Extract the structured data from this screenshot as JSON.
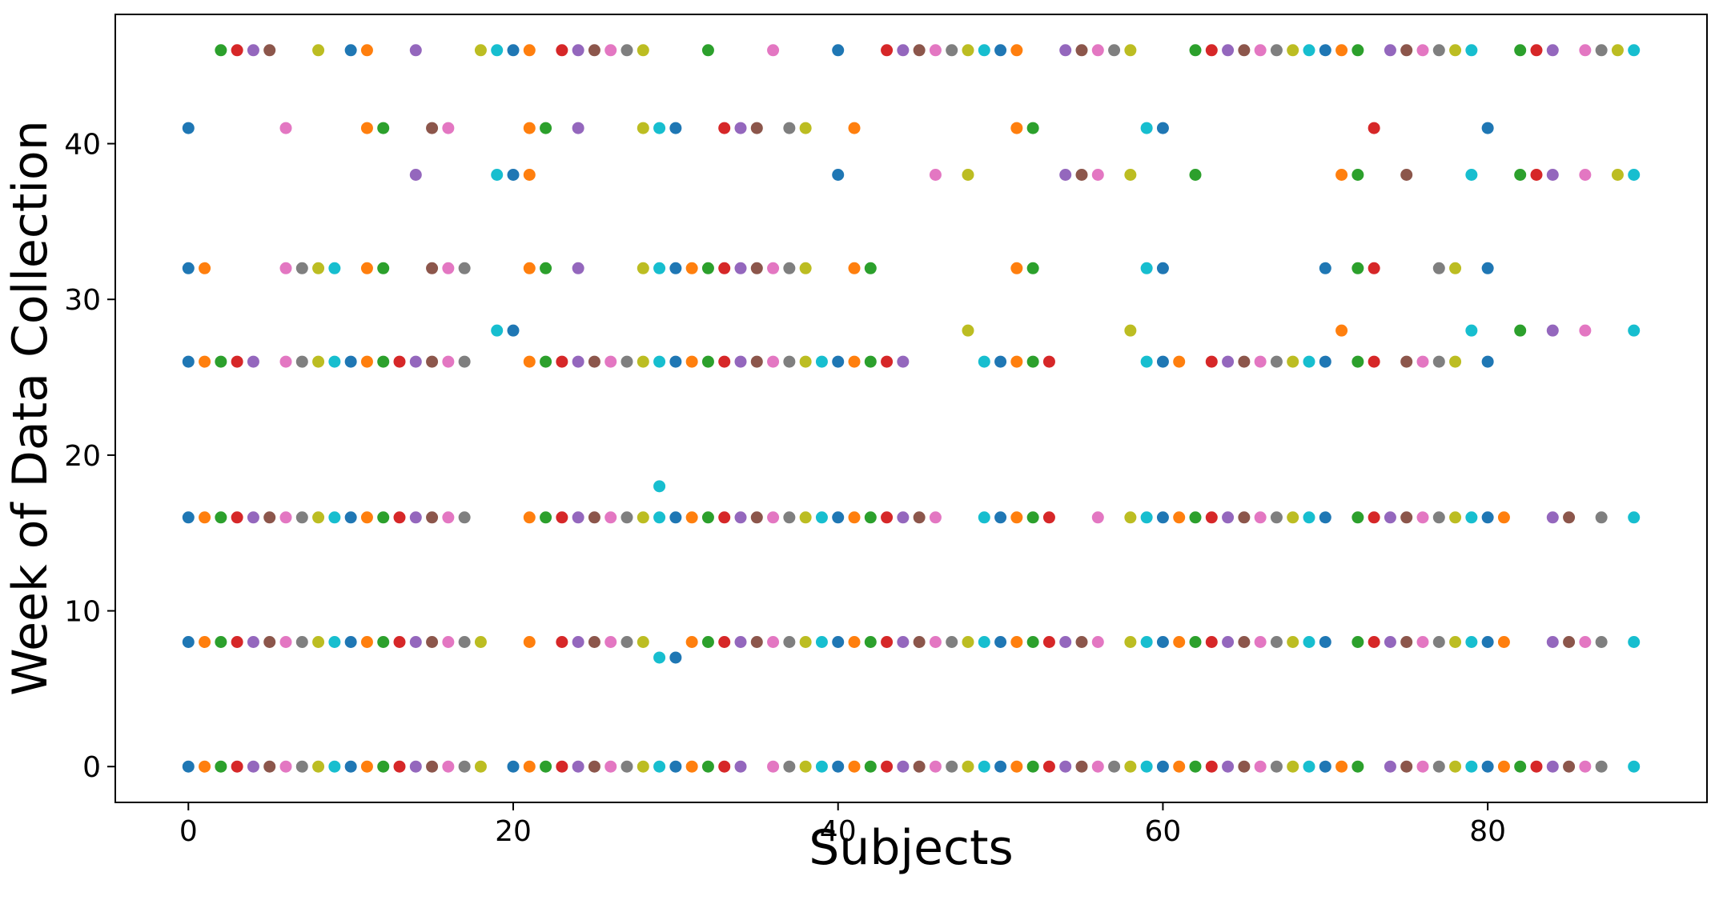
{
  "chart_data": {
    "type": "scatter",
    "title": "",
    "xlabel": "Subjects",
    "ylabel": "Week of Data Collection",
    "xlim": [
      -4.5,
      93.5
    ],
    "ylim": [
      -2.3,
      48.3
    ],
    "xticks": [
      0,
      20,
      40,
      60,
      80
    ],
    "yticks": [
      0,
      10,
      20,
      30,
      40
    ],
    "grid": false,
    "legend": "none",
    "palette": [
      "#1f77b4",
      "#ff7f0e",
      "#2ca02c",
      "#d62728",
      "#9467bd",
      "#8c564b",
      "#e377c2",
      "#7f7f7f",
      "#bcbd22",
      "#17becf"
    ],
    "series": [
      {
        "subject": 0,
        "weeks": [
          0,
          8,
          16,
          26,
          32,
          41
        ]
      },
      {
        "subject": 1,
        "weeks": [
          0,
          8,
          16,
          26,
          32
        ]
      },
      {
        "subject": 2,
        "weeks": [
          0,
          8,
          16,
          26,
          46
        ]
      },
      {
        "subject": 3,
        "weeks": [
          0,
          8,
          16,
          26,
          46
        ]
      },
      {
        "subject": 4,
        "weeks": [
          0,
          8,
          16,
          26,
          46
        ]
      },
      {
        "subject": 5,
        "weeks": [
          0,
          8,
          16,
          46
        ]
      },
      {
        "subject": 6,
        "weeks": [
          0,
          8,
          16,
          26,
          32,
          41
        ]
      },
      {
        "subject": 7,
        "weeks": [
          0,
          8,
          16,
          26,
          32
        ]
      },
      {
        "subject": 8,
        "weeks": [
          0,
          8,
          16,
          26,
          32,
          46
        ]
      },
      {
        "subject": 9,
        "weeks": [
          0,
          8,
          16,
          26,
          32
        ]
      },
      {
        "subject": 10,
        "weeks": [
          0,
          8,
          16,
          26,
          46
        ]
      },
      {
        "subject": 11,
        "weeks": [
          0,
          8,
          16,
          26,
          32,
          41,
          46
        ]
      },
      {
        "subject": 12,
        "weeks": [
          0,
          8,
          16,
          26,
          32,
          41
        ]
      },
      {
        "subject": 13,
        "weeks": [
          0,
          8,
          16,
          26
        ]
      },
      {
        "subject": 14,
        "weeks": [
          0,
          8,
          16,
          26,
          38,
          46
        ]
      },
      {
        "subject": 15,
        "weeks": [
          0,
          8,
          16,
          26,
          32,
          41
        ]
      },
      {
        "subject": 16,
        "weeks": [
          0,
          8,
          16,
          26,
          32,
          41
        ]
      },
      {
        "subject": 17,
        "weeks": [
          0,
          8,
          16,
          26,
          32
        ]
      },
      {
        "subject": 18,
        "weeks": [
          0,
          8,
          46
        ]
      },
      {
        "subject": 19,
        "weeks": [
          28,
          38,
          46
        ]
      },
      {
        "subject": 20,
        "weeks": [
          0,
          28,
          38,
          46
        ]
      },
      {
        "subject": 21,
        "weeks": [
          0,
          8,
          16,
          26,
          32,
          38,
          41,
          46
        ]
      },
      {
        "subject": 22,
        "weeks": [
          0,
          16,
          26,
          32,
          41
        ]
      },
      {
        "subject": 23,
        "weeks": [
          0,
          8,
          16,
          26,
          46
        ]
      },
      {
        "subject": 24,
        "weeks": [
          0,
          8,
          16,
          26,
          32,
          41,
          46
        ]
      },
      {
        "subject": 25,
        "weeks": [
          0,
          8,
          16,
          26,
          46
        ]
      },
      {
        "subject": 26,
        "weeks": [
          0,
          8,
          16,
          26,
          46
        ]
      },
      {
        "subject": 27,
        "weeks": [
          0,
          8,
          16,
          26,
          46
        ]
      },
      {
        "subject": 28,
        "weeks": [
          0,
          8,
          16,
          26,
          32,
          41,
          46
        ]
      },
      {
        "subject": 29,
        "weeks": [
          0,
          7,
          16,
          18,
          26,
          32,
          41
        ]
      },
      {
        "subject": 30,
        "weeks": [
          0,
          7,
          16,
          26,
          32,
          41
        ]
      },
      {
        "subject": 31,
        "weeks": [
          0,
          8,
          16,
          26,
          32
        ]
      },
      {
        "subject": 32,
        "weeks": [
          0,
          8,
          16,
          26,
          32,
          46
        ]
      },
      {
        "subject": 33,
        "weeks": [
          0,
          8,
          16,
          26,
          32,
          41
        ]
      },
      {
        "subject": 34,
        "weeks": [
          0,
          8,
          16,
          26,
          32,
          41
        ]
      },
      {
        "subject": 35,
        "weeks": [
          8,
          16,
          26,
          32,
          41
        ]
      },
      {
        "subject": 36,
        "weeks": [
          0,
          8,
          16,
          26,
          32,
          46
        ]
      },
      {
        "subject": 37,
        "weeks": [
          0,
          8,
          16,
          26,
          32,
          41
        ]
      },
      {
        "subject": 38,
        "weeks": [
          0,
          8,
          16,
          26,
          32,
          41
        ]
      },
      {
        "subject": 39,
        "weeks": [
          0,
          8,
          16,
          26
        ]
      },
      {
        "subject": 40,
        "weeks": [
          0,
          8,
          16,
          26,
          38,
          46
        ]
      },
      {
        "subject": 41,
        "weeks": [
          0,
          8,
          16,
          26,
          32,
          41
        ]
      },
      {
        "subject": 42,
        "weeks": [
          0,
          8,
          16,
          26,
          32
        ]
      },
      {
        "subject": 43,
        "weeks": [
          0,
          8,
          16,
          26,
          46
        ]
      },
      {
        "subject": 44,
        "weeks": [
          0,
          8,
          16,
          26,
          46
        ]
      },
      {
        "subject": 45,
        "weeks": [
          0,
          8,
          16,
          46
        ]
      },
      {
        "subject": 46,
        "weeks": [
          0,
          8,
          16,
          38,
          46
        ]
      },
      {
        "subject": 47,
        "weeks": [
          0,
          8,
          46
        ]
      },
      {
        "subject": 48,
        "weeks": [
          0,
          8,
          28,
          38,
          46
        ]
      },
      {
        "subject": 49,
        "weeks": [
          0,
          8,
          16,
          26,
          46
        ]
      },
      {
        "subject": 50,
        "weeks": [
          0,
          8,
          16,
          26,
          46
        ]
      },
      {
        "subject": 51,
        "weeks": [
          0,
          8,
          16,
          26,
          32,
          41,
          46
        ]
      },
      {
        "subject": 52,
        "weeks": [
          0,
          8,
          16,
          26,
          32,
          41
        ]
      },
      {
        "subject": 53,
        "weeks": [
          0,
          8,
          16,
          26
        ]
      },
      {
        "subject": 54,
        "weeks": [
          0,
          8,
          38,
          46
        ]
      },
      {
        "subject": 55,
        "weeks": [
          0,
          8,
          38,
          46
        ]
      },
      {
        "subject": 56,
        "weeks": [
          0,
          8,
          16,
          38,
          46
        ]
      },
      {
        "subject": 57,
        "weeks": [
          0,
          46
        ]
      },
      {
        "subject": 58,
        "weeks": [
          0,
          8,
          16,
          28,
          38,
          46
        ]
      },
      {
        "subject": 59,
        "weeks": [
          0,
          8,
          16,
          26,
          32,
          41
        ]
      },
      {
        "subject": 60,
        "weeks": [
          0,
          8,
          16,
          26,
          32,
          41
        ]
      },
      {
        "subject": 61,
        "weeks": [
          0,
          8,
          16,
          26
        ]
      },
      {
        "subject": 62,
        "weeks": [
          0,
          8,
          16,
          38,
          46
        ]
      },
      {
        "subject": 63,
        "weeks": [
          0,
          8,
          16,
          26,
          46
        ]
      },
      {
        "subject": 64,
        "weeks": [
          0,
          8,
          16,
          26,
          46
        ]
      },
      {
        "subject": 65,
        "weeks": [
          0,
          8,
          16,
          26,
          46
        ]
      },
      {
        "subject": 66,
        "weeks": [
          0,
          8,
          16,
          26,
          46
        ]
      },
      {
        "subject": 67,
        "weeks": [
          0,
          8,
          16,
          26,
          46
        ]
      },
      {
        "subject": 68,
        "weeks": [
          0,
          8,
          16,
          26,
          46
        ]
      },
      {
        "subject": 69,
        "weeks": [
          0,
          8,
          16,
          26,
          46
        ]
      },
      {
        "subject": 70,
        "weeks": [
          0,
          8,
          16,
          26,
          32,
          46
        ]
      },
      {
        "subject": 71,
        "weeks": [
          0,
          28,
          38,
          46
        ]
      },
      {
        "subject": 72,
        "weeks": [
          0,
          8,
          16,
          26,
          32,
          38,
          46
        ]
      },
      {
        "subject": 73,
        "weeks": [
          8,
          16,
          26,
          32,
          41
        ]
      },
      {
        "subject": 74,
        "weeks": [
          0,
          8,
          16,
          46
        ]
      },
      {
        "subject": 75,
        "weeks": [
          0,
          8,
          16,
          26,
          38,
          46
        ]
      },
      {
        "subject": 76,
        "weeks": [
          0,
          8,
          16,
          26,
          46
        ]
      },
      {
        "subject": 77,
        "weeks": [
          0,
          8,
          16,
          26,
          32,
          46
        ]
      },
      {
        "subject": 78,
        "weeks": [
          0,
          8,
          16,
          26,
          32,
          46
        ]
      },
      {
        "subject": 79,
        "weeks": [
          0,
          8,
          16,
          28,
          38,
          46
        ]
      },
      {
        "subject": 80,
        "weeks": [
          0,
          8,
          16,
          26,
          32,
          41
        ]
      },
      {
        "subject": 81,
        "weeks": [
          0,
          8,
          16
        ]
      },
      {
        "subject": 82,
        "weeks": [
          0,
          28,
          38,
          46
        ]
      },
      {
        "subject": 83,
        "weeks": [
          0,
          38,
          46
        ]
      },
      {
        "subject": 84,
        "weeks": [
          0,
          8,
          16,
          28,
          38,
          46
        ]
      },
      {
        "subject": 85,
        "weeks": [
          0,
          8,
          16
        ]
      },
      {
        "subject": 86,
        "weeks": [
          0,
          8,
          28,
          38,
          46
        ]
      },
      {
        "subject": 87,
        "weeks": [
          0,
          8,
          16,
          46
        ]
      },
      {
        "subject": 88,
        "weeks": [
          38,
          46
        ]
      },
      {
        "subject": 89,
        "weeks": [
          0,
          8,
          16,
          28,
          38,
          46
        ]
      }
    ]
  }
}
